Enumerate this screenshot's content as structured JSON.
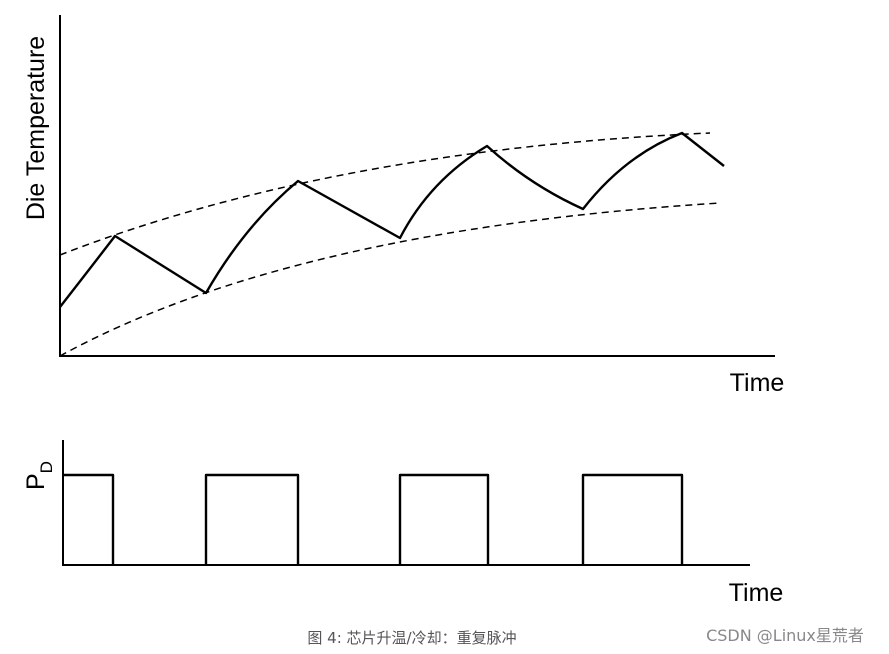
{
  "labels": {
    "y_axis_top": "Die Temperature",
    "x_axis_top": "Time",
    "y_axis_bottom": "P",
    "y_axis_bottom_subscript": "D",
    "x_axis_bottom": "Time"
  },
  "caption": "图 4: 芯片升温/冷却：重复脉冲",
  "watermark": "CSDN @Linux星荒者"
}
